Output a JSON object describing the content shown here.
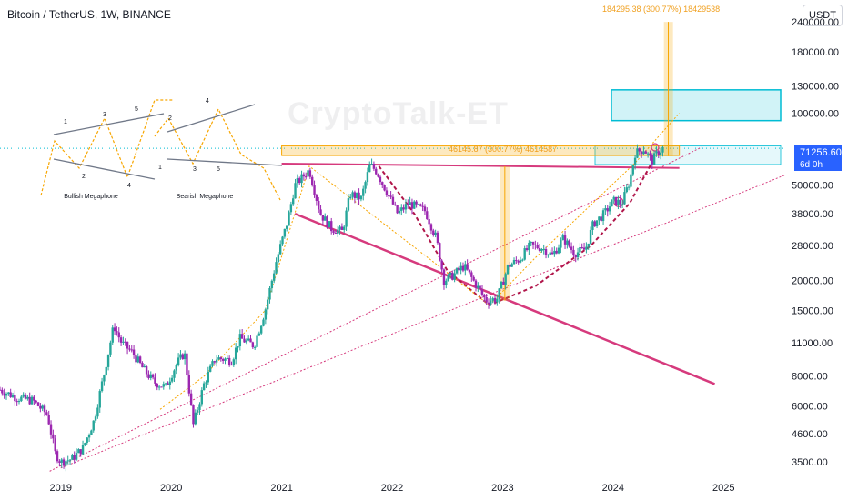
{
  "header": {
    "title": "Bitcoin / TetherUS, 1W, BINANCE"
  },
  "watermark": "CryptoTalk-ET",
  "currency_button": "USDT",
  "last_price": {
    "value": "71256.60",
    "countdown": "6d 0h"
  },
  "colors": {
    "up": "#26a69a",
    "down": "#9c27b0",
    "trendline": "#d63a7d",
    "orange": "#f7a600",
    "target_box": "#00bcd4",
    "price_label": "#2962ff"
  },
  "measurements": [
    {
      "text": "184295.38 (300.77%) 18429538"
    },
    {
      "text": "46145.87 (300.77%) 4614587"
    }
  ],
  "patterns": [
    {
      "name": "Bullish Megaphone",
      "points": [
        "1",
        "2",
        "3",
        "4",
        "5"
      ]
    },
    {
      "name": "Bearish Megaphone",
      "points": [
        "1",
        "2",
        "3",
        "4",
        "5"
      ]
    }
  ],
  "chart_data": {
    "type": "candlestick",
    "title": "Bitcoin / TetherUS, 1W, BINANCE",
    "y_scale": "log",
    "ylim": [
      3100,
      260000
    ],
    "xlim": [
      2018.45,
      2025.55
    ],
    "y_tick_labels": [
      "240000.00",
      "180000.00",
      "130000.00",
      "100000.00",
      "50000.00",
      "38000.00",
      "28000.00",
      "20000.00",
      "15000.00",
      "11000.00",
      "8000.00",
      "6000.00",
      "4600.00",
      "3500.00"
    ],
    "y_tick_values": [
      240000,
      180000,
      130000,
      100000,
      50000,
      38000,
      28000,
      20000,
      15000,
      11000,
      8000,
      6000,
      4600,
      3500
    ],
    "x_tick_labels": [
      "2019",
      "2020",
      "2021",
      "2022",
      "2023",
      "2024",
      "2025"
    ],
    "x_tick_values": [
      2019,
      2020,
      2021,
      2022,
      2023,
      2024,
      2025
    ],
    "price_path": [
      [
        2018.45,
        7000
      ],
      [
        2018.6,
        6500
      ],
      [
        2018.75,
        6300
      ],
      [
        2018.88,
        5500
      ],
      [
        2018.95,
        3800
      ],
      [
        2019.0,
        3500
      ],
      [
        2019.1,
        3600
      ],
      [
        2019.2,
        4000
      ],
      [
        2019.3,
        5200
      ],
      [
        2019.4,
        8500
      ],
      [
        2019.48,
        13000
      ],
      [
        2019.55,
        11000
      ],
      [
        2019.65,
        10000
      ],
      [
        2019.75,
        8500
      ],
      [
        2019.85,
        7500
      ],
      [
        2019.95,
        7200
      ],
      [
        2020.05,
        9000
      ],
      [
        2020.12,
        10000
      ],
      [
        2020.2,
        5000
      ],
      [
        2020.3,
        7500
      ],
      [
        2020.4,
        9500
      ],
      [
        2020.55,
        9300
      ],
      [
        2020.62,
        11500
      ],
      [
        2020.75,
        10700
      ],
      [
        2020.85,
        15000
      ],
      [
        2020.95,
        24000
      ],
      [
        2021.05,
        35000
      ],
      [
        2021.12,
        50000
      ],
      [
        2021.25,
        58000
      ],
      [
        2021.35,
        38000
      ],
      [
        2021.45,
        33000
      ],
      [
        2021.55,
        32000
      ],
      [
        2021.62,
        46000
      ],
      [
        2021.72,
        44000
      ],
      [
        2021.8,
        61000
      ],
      [
        2021.86,
        57000
      ],
      [
        2021.95,
        47000
      ],
      [
        2022.05,
        38000
      ],
      [
        2022.15,
        42000
      ],
      [
        2022.3,
        39000
      ],
      [
        2022.4,
        30000
      ],
      [
        2022.47,
        20000
      ],
      [
        2022.55,
        21000
      ],
      [
        2022.65,
        23000
      ],
      [
        2022.75,
        19500
      ],
      [
        2022.85,
        16500
      ],
      [
        2022.95,
        16800
      ],
      [
        2023.05,
        23000
      ],
      [
        2023.15,
        24500
      ],
      [
        2023.25,
        28000
      ],
      [
        2023.35,
        27500
      ],
      [
        2023.45,
        25500
      ],
      [
        2023.55,
        30000
      ],
      [
        2023.65,
        26000
      ],
      [
        2023.75,
        27000
      ],
      [
        2023.82,
        34500
      ],
      [
        2023.92,
        38000
      ],
      [
        2024.0,
        43000
      ],
      [
        2024.08,
        42000
      ],
      [
        2024.15,
        52000
      ],
      [
        2024.2,
        68000
      ],
      [
        2024.28,
        71000
      ],
      [
        2024.35,
        63000
      ],
      [
        2024.4,
        68000
      ],
      [
        2024.45,
        71256
      ]
    ],
    "last_price": 71256.6
  }
}
